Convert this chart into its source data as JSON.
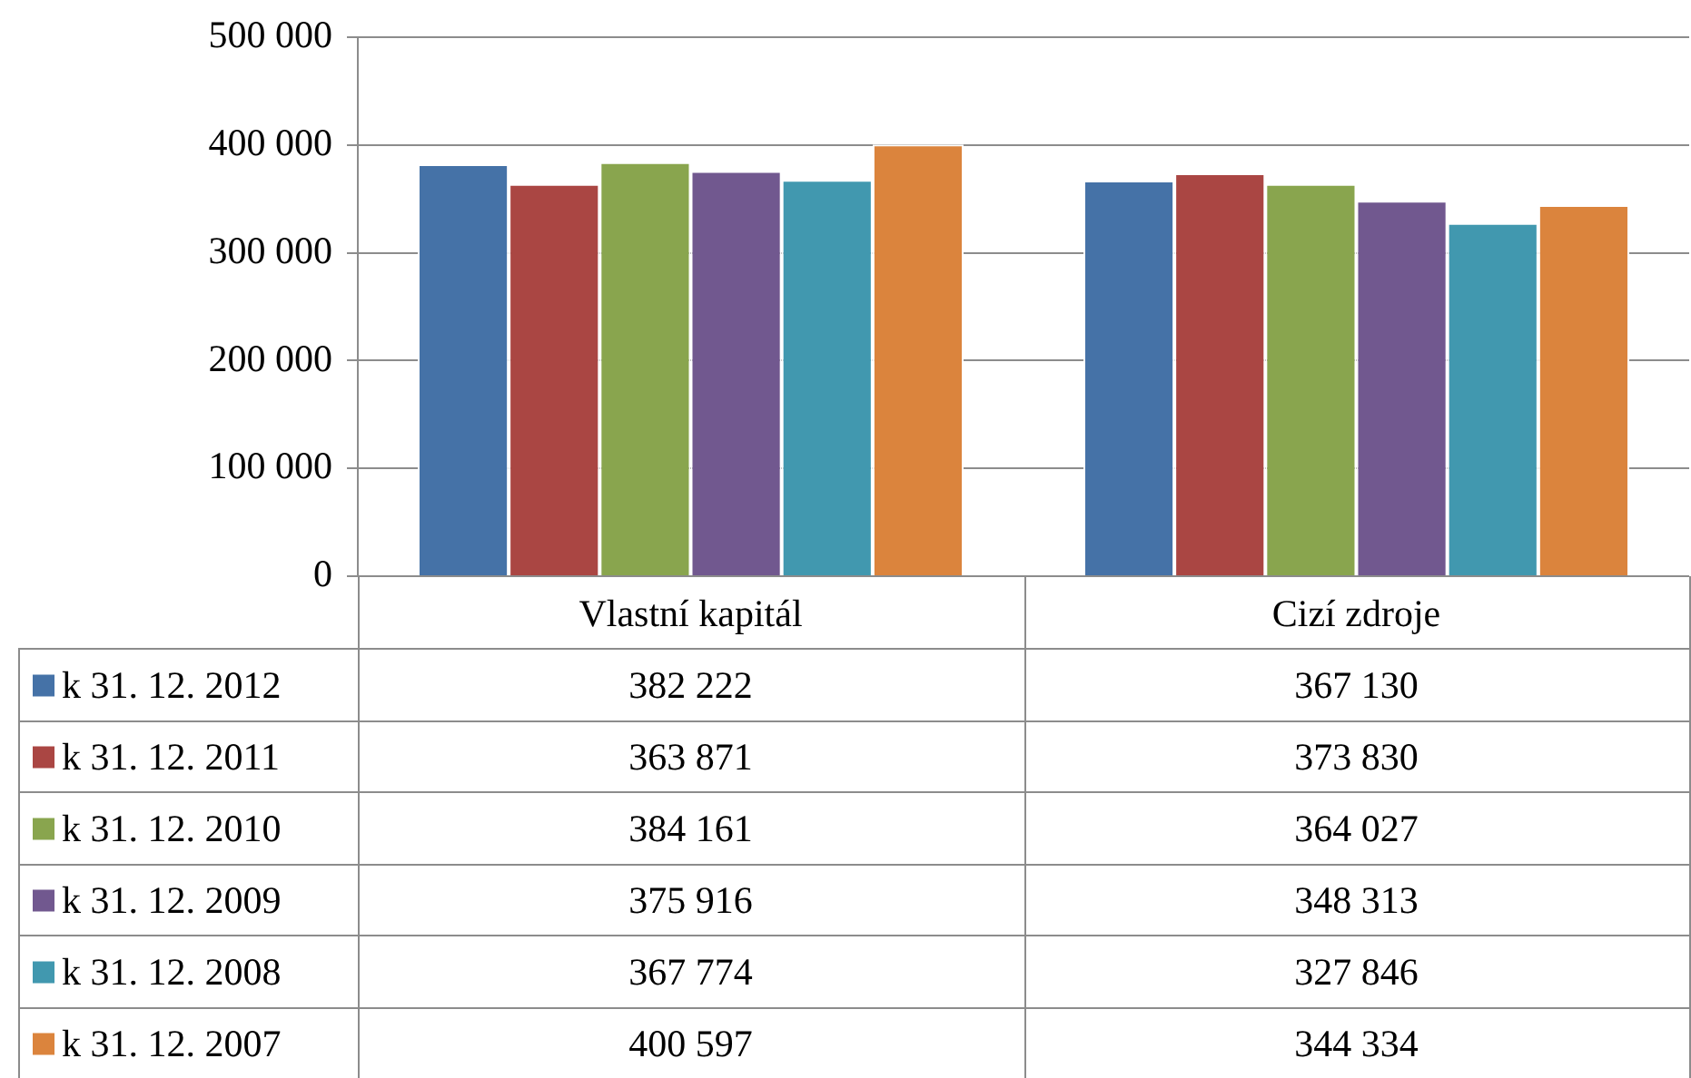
{
  "chart_data": {
    "type": "bar",
    "categories": [
      "Vlastní kapitál",
      "Cizí zdroje"
    ],
    "series": [
      {
        "name": "k 31. 12. 2012",
        "color": "#4572a7",
        "values": [
          382222,
          367130
        ],
        "value_labels": [
          "382 222",
          "367 130"
        ]
      },
      {
        "name": "k 31. 12. 2011",
        "color": "#aa4643",
        "values": [
          363871,
          373830
        ],
        "value_labels": [
          "363 871",
          "373 830"
        ]
      },
      {
        "name": "k 31. 12. 2010",
        "color": "#89a54e",
        "values": [
          384161,
          364027
        ],
        "value_labels": [
          "384 161",
          "364 027"
        ]
      },
      {
        "name": "k 31. 12. 2009",
        "color": "#71588f",
        "values": [
          375916,
          348313
        ],
        "value_labels": [
          "375 916",
          "348 313"
        ]
      },
      {
        "name": "k 31. 12. 2008",
        "color": "#4198af",
        "values": [
          367774,
          327846
        ],
        "value_labels": [
          "367 774",
          "327 846"
        ]
      },
      {
        "name": "k 31. 12. 2007",
        "color": "#db843d",
        "values": [
          400597,
          344334
        ],
        "value_labels": [
          "400 597",
          "344 334"
        ]
      }
    ],
    "ylim": [
      0,
      500000
    ],
    "yticks": [
      0,
      {
        "value": 100000,
        "label": "100 000"
      },
      {
        "value": 200000,
        "label": "200 000"
      },
      {
        "value": 300000,
        "label": "300 000"
      },
      {
        "value": 400000,
        "label": "400 000"
      },
      {
        "value": 500000,
        "label": "500 000"
      }
    ],
    "grid": "y",
    "legend": "bottom"
  }
}
